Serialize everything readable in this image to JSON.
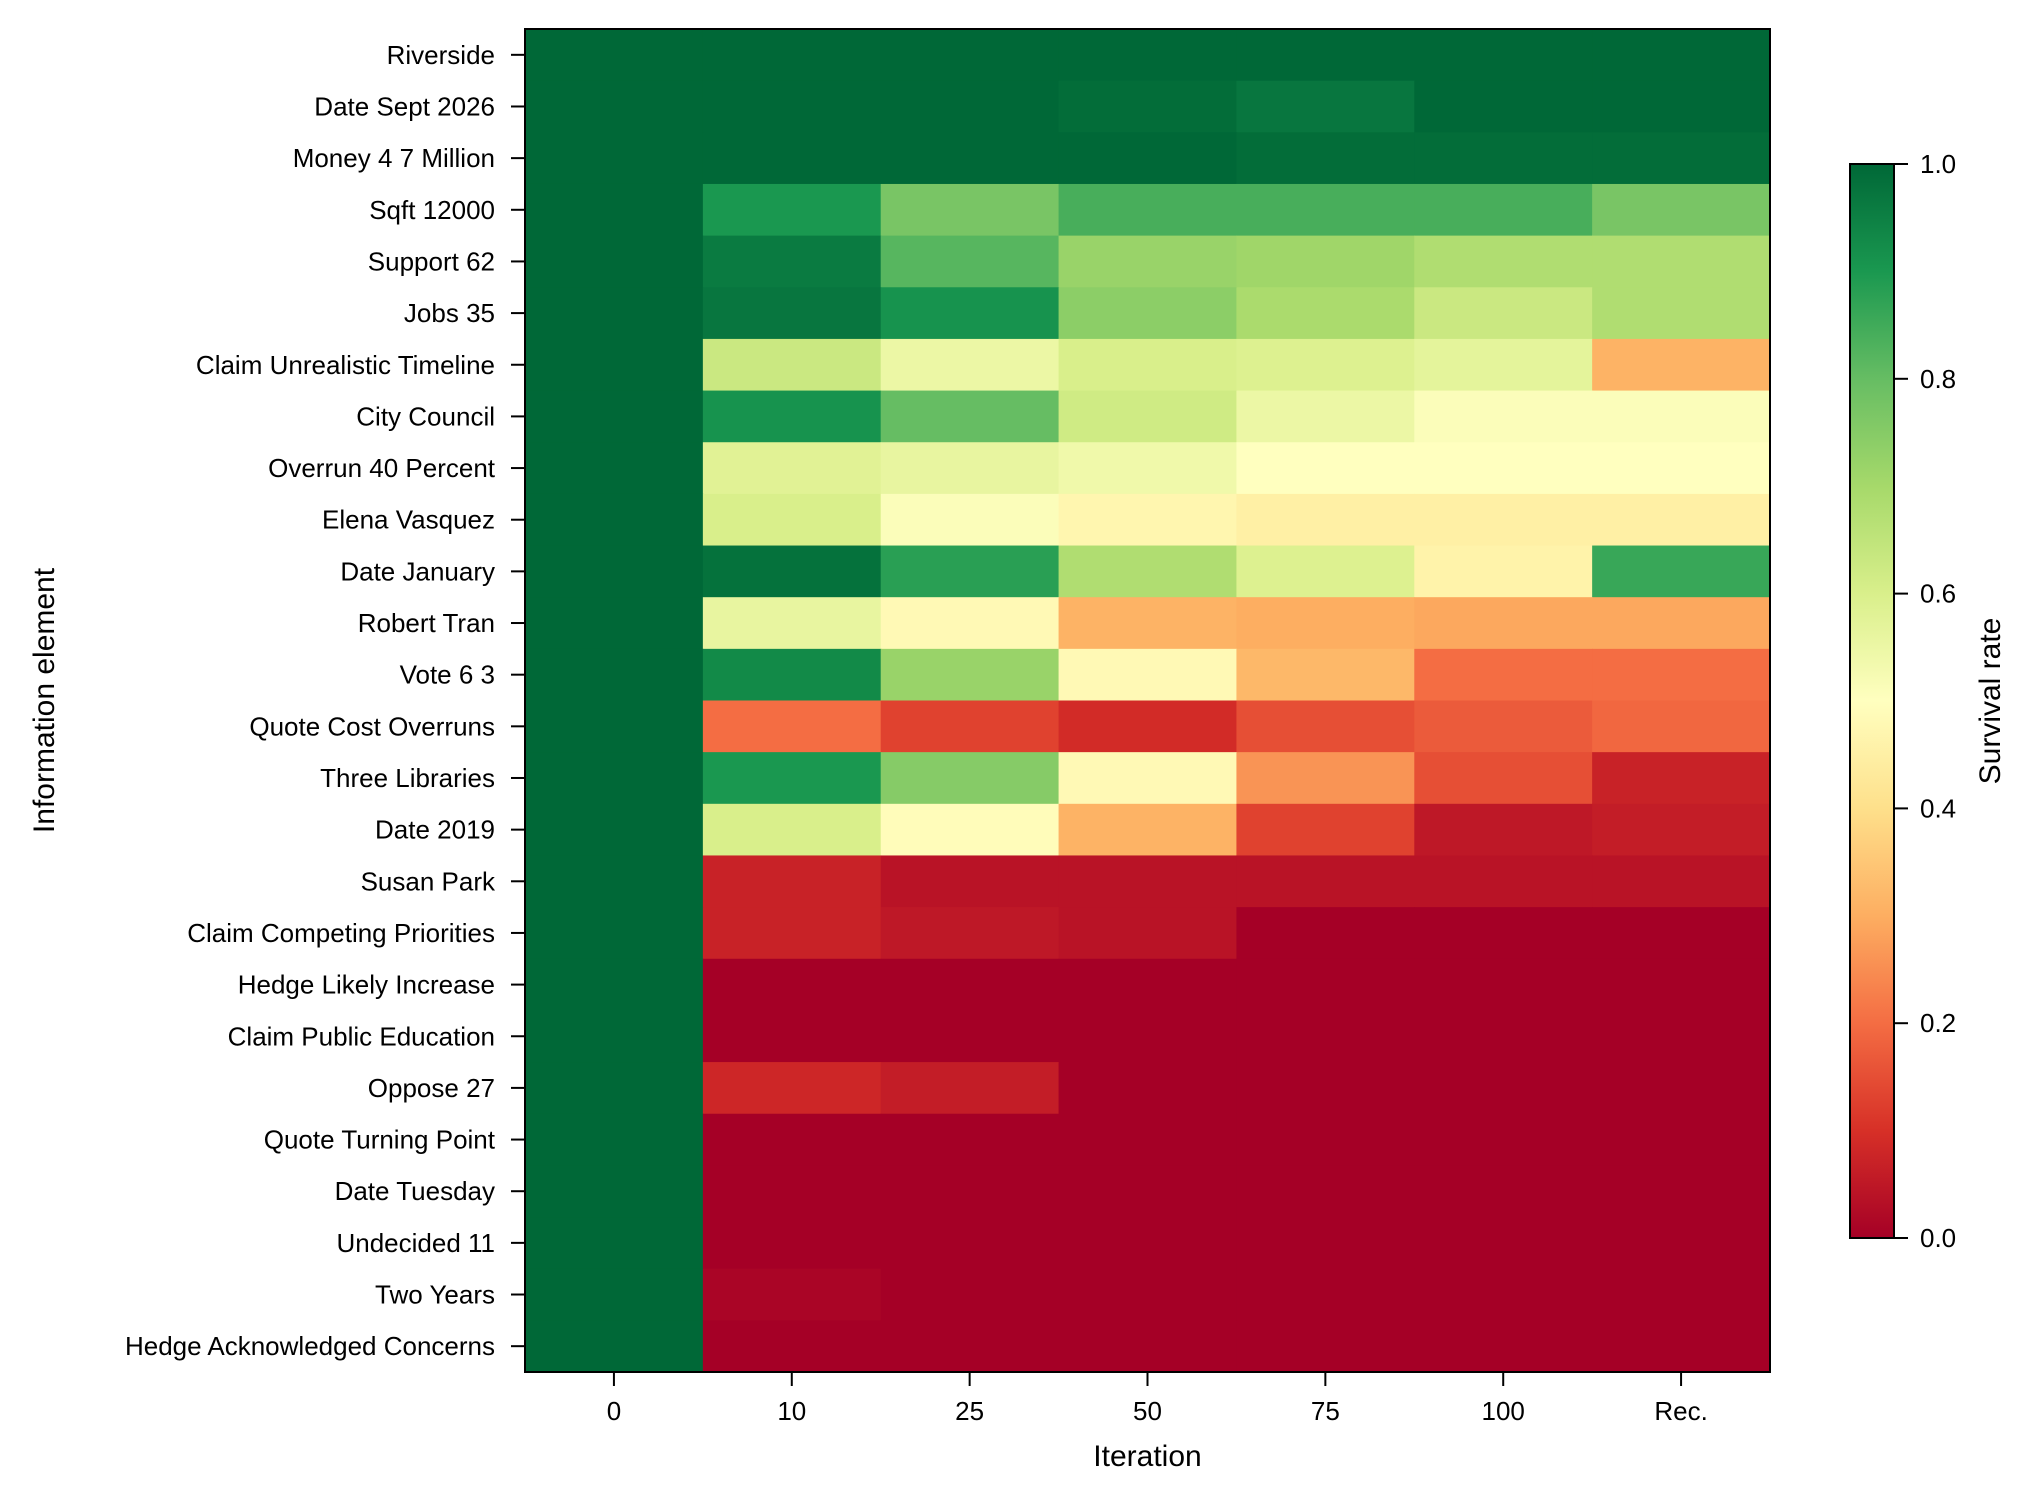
{
  "chart_data": {
    "type": "heatmap",
    "title": "",
    "xlabel": "Iteration",
    "ylabel": "Information element",
    "x_categories": [
      "0",
      "10",
      "25",
      "50",
      "75",
      "100",
      "Rec."
    ],
    "y_categories": [
      "Riverside",
      "Date Sept 2026",
      "Money 4 7 Million",
      "Sqft 12000",
      "Support 62",
      "Jobs 35",
      "Claim Unrealistic Timeline",
      "City Council",
      "Overrun 40 Percent",
      "Elena Vasquez",
      "Date January",
      "Robert Tran",
      "Vote 6 3",
      "Quote Cost Overruns",
      "Three Libraries",
      "Date 2019",
      "Susan Park",
      "Claim Competing Priorities",
      "Hedge Likely Increase",
      "Claim Public Education",
      "Oppose 27",
      "Quote Turning Point",
      "Date Tuesday",
      "Undecided 11",
      "Two Years",
      "Hedge Acknowledged Concerns"
    ],
    "values": [
      [
        1.0,
        1.0,
        1.0,
        1.0,
        1.0,
        1.0,
        1.0
      ],
      [
        1.0,
        1.0,
        1.0,
        0.99,
        0.97,
        1.0,
        1.0
      ],
      [
        1.0,
        1.0,
        1.0,
        1.0,
        0.99,
        0.99,
        0.99
      ],
      [
        1.0,
        0.9,
        0.77,
        0.84,
        0.84,
        0.84,
        0.77
      ],
      [
        1.0,
        0.96,
        0.82,
        0.72,
        0.71,
        0.68,
        0.68
      ],
      [
        1.0,
        0.97,
        0.91,
        0.74,
        0.69,
        0.63,
        0.68
      ],
      [
        1.0,
        0.63,
        0.55,
        0.6,
        0.59,
        0.57,
        0.31
      ],
      [
        1.0,
        0.91,
        0.8,
        0.62,
        0.55,
        0.51,
        0.51
      ],
      [
        1.0,
        0.58,
        0.56,
        0.54,
        0.5,
        0.5,
        0.5
      ],
      [
        1.0,
        0.6,
        0.51,
        0.47,
        0.45,
        0.45,
        0.45
      ],
      [
        1.0,
        0.98,
        0.88,
        0.68,
        0.59,
        0.46,
        0.86
      ],
      [
        1.0,
        0.56,
        0.48,
        0.31,
        0.3,
        0.29,
        0.29
      ],
      [
        1.0,
        0.93,
        0.72,
        0.48,
        0.32,
        0.2,
        0.2
      ],
      [
        1.0,
        0.2,
        0.13,
        0.09,
        0.15,
        0.17,
        0.19
      ],
      [
        1.0,
        0.9,
        0.75,
        0.48,
        0.26,
        0.15,
        0.07
      ],
      [
        1.0,
        0.6,
        0.49,
        0.31,
        0.13,
        0.05,
        0.06
      ],
      [
        1.0,
        0.07,
        0.04,
        0.04,
        0.04,
        0.04,
        0.04
      ],
      [
        1.0,
        0.07,
        0.05,
        0.04,
        0.0,
        0.0,
        0.0
      ],
      [
        1.0,
        0.0,
        0.0,
        0.0,
        0.0,
        0.0,
        0.0
      ],
      [
        1.0,
        0.0,
        0.0,
        0.0,
        0.0,
        0.0,
        0.0
      ],
      [
        1.0,
        0.08,
        0.06,
        0.0,
        0.0,
        0.0,
        0.0
      ],
      [
        1.0,
        0.0,
        0.0,
        0.0,
        0.0,
        0.0,
        0.0
      ],
      [
        1.0,
        0.0,
        0.0,
        0.0,
        0.0,
        0.0,
        0.0
      ],
      [
        1.0,
        0.0,
        0.0,
        0.0,
        0.0,
        0.0,
        0.0
      ],
      [
        1.0,
        0.01,
        0.0,
        0.0,
        0.0,
        0.0,
        0.0
      ],
      [
        1.0,
        0.0,
        0.0,
        0.0,
        0.0,
        0.0,
        0.0
      ]
    ],
    "colormap": "RdYlGn",
    "colormap_stops": [
      "#a50026",
      "#d73027",
      "#f46d43",
      "#fdae61",
      "#fee08b",
      "#ffffbf",
      "#d9ef8b",
      "#a6d96a",
      "#66bd63",
      "#1a9850",
      "#006837"
    ],
    "colorbar": {
      "label": "Survival rate",
      "range": [
        0.0,
        1.0
      ],
      "ticks": [
        "0.0",
        "0.2",
        "0.4",
        "0.6",
        "0.8",
        "1.0"
      ]
    }
  }
}
